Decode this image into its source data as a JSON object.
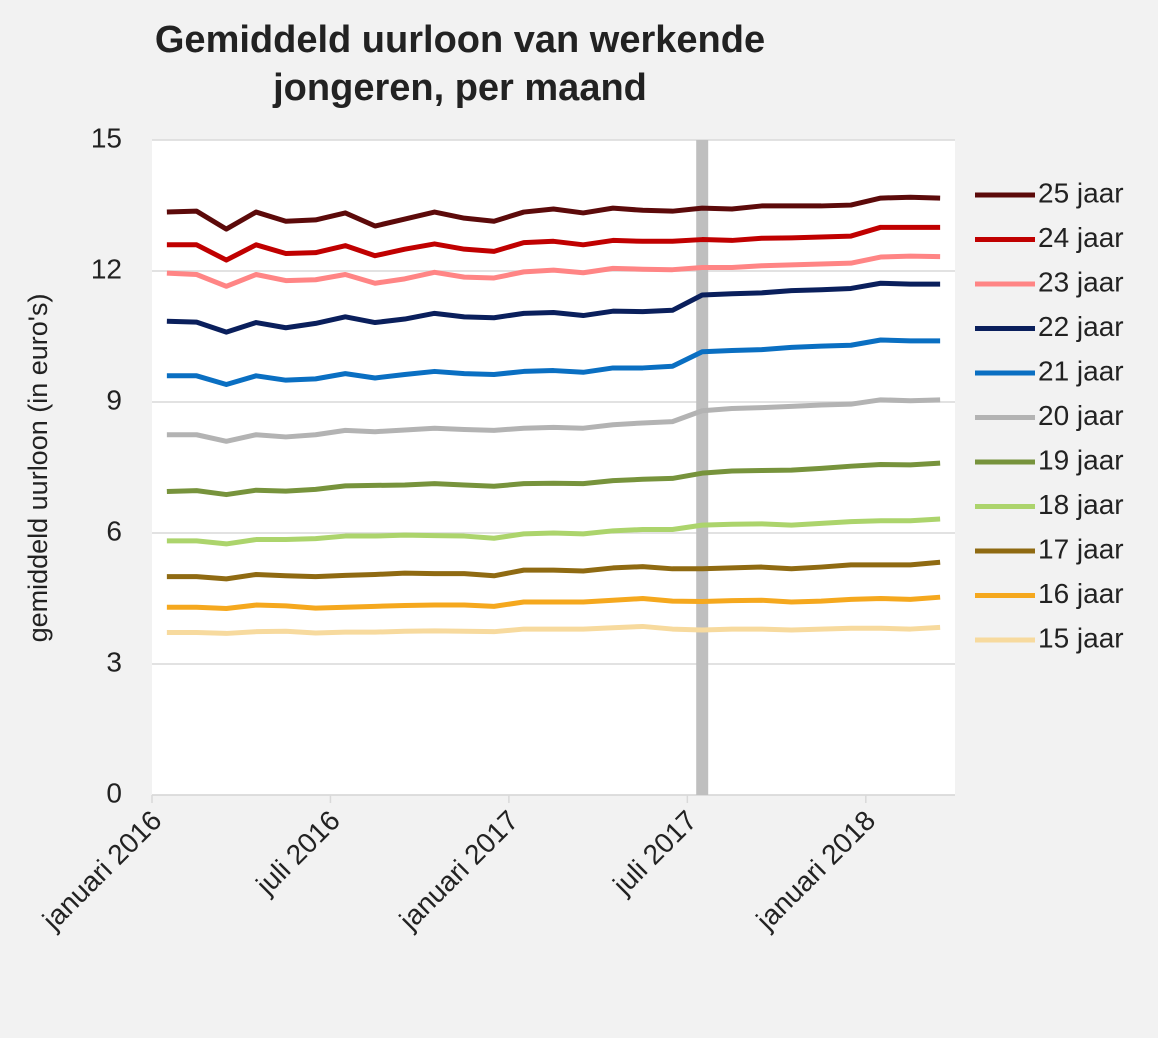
{
  "chart_data": {
    "type": "line",
    "title": [
      "Gemiddeld uurloon van werkende",
      "jongeren, per maand"
    ],
    "y_label": "gemiddeld uurloon (in euro's)",
    "categories": [
      "januari 2016",
      null,
      null,
      null,
      null,
      null,
      "juli 2016",
      null,
      null,
      null,
      null,
      null,
      "januari 2017",
      null,
      null,
      null,
      null,
      null,
      "juli 2017",
      null,
      null,
      null,
      null,
      null,
      "januari 2018",
      null,
      null
    ],
    "ylim": [
      0,
      15
    ],
    "yticks": [
      0,
      3,
      6,
      9,
      12,
      15
    ],
    "grid": true,
    "legend": "right",
    "series": [
      {
        "name": "25 jaar",
        "color": "#5c0a0a",
        "values": [
          13.35,
          13.37,
          12.96,
          13.35,
          13.14,
          13.17,
          13.33,
          13.03,
          13.19,
          13.35,
          13.21,
          13.14,
          13.35,
          13.42,
          13.33,
          13.44,
          13.39,
          13.37,
          13.44,
          13.42,
          13.49,
          13.49,
          13.49,
          13.51,
          13.67,
          13.69,
          13.67
        ]
      },
      {
        "name": "24 jaar",
        "color": "#c00000",
        "values": [
          12.6,
          12.6,
          12.25,
          12.6,
          12.4,
          12.42,
          12.58,
          12.35,
          12.5,
          12.62,
          12.5,
          12.45,
          12.65,
          12.68,
          12.6,
          12.7,
          12.68,
          12.68,
          12.72,
          12.7,
          12.75,
          12.76,
          12.78,
          12.8,
          13.0,
          13.0,
          13.0
        ]
      },
      {
        "name": "23 jaar",
        "color": "#ff8585",
        "values": [
          11.95,
          11.92,
          11.65,
          11.92,
          11.78,
          11.8,
          11.92,
          11.72,
          11.82,
          11.97,
          11.86,
          11.84,
          11.98,
          12.02,
          11.96,
          12.06,
          12.04,
          12.03,
          12.08,
          12.08,
          12.12,
          12.14,
          12.16,
          12.18,
          12.32,
          12.34,
          12.33
        ]
      },
      {
        "name": "22 jaar",
        "color": "#0a1f5c",
        "values": [
          10.85,
          10.83,
          10.6,
          10.82,
          10.7,
          10.8,
          10.95,
          10.82,
          10.9,
          11.03,
          10.95,
          10.93,
          11.03,
          11.05,
          10.98,
          11.08,
          11.07,
          11.1,
          11.45,
          11.48,
          11.5,
          11.55,
          11.57,
          11.6,
          11.72,
          11.7,
          11.7
        ]
      },
      {
        "name": "21 jaar",
        "color": "#0a6fc2",
        "values": [
          9.6,
          9.6,
          9.4,
          9.6,
          9.5,
          9.53,
          9.65,
          9.55,
          9.63,
          9.7,
          9.65,
          9.63,
          9.7,
          9.72,
          9.68,
          9.78,
          9.78,
          9.82,
          10.15,
          10.18,
          10.2,
          10.25,
          10.28,
          10.3,
          10.42,
          10.4,
          10.4
        ]
      },
      {
        "name": "20 jaar",
        "color": "#b3b3b3",
        "values": [
          8.25,
          8.25,
          8.1,
          8.25,
          8.2,
          8.25,
          8.35,
          8.32,
          8.36,
          8.4,
          8.37,
          8.35,
          8.4,
          8.42,
          8.4,
          8.48,
          8.52,
          8.55,
          8.8,
          8.85,
          8.87,
          8.9,
          8.93,
          8.95,
          9.05,
          9.03,
          9.05
        ]
      },
      {
        "name": "19 jaar",
        "color": "#77933c",
        "values": [
          6.95,
          6.97,
          6.88,
          6.98,
          6.96,
          7.0,
          7.08,
          7.09,
          7.1,
          7.13,
          7.1,
          7.07,
          7.13,
          7.14,
          7.13,
          7.2,
          7.23,
          7.25,
          7.37,
          7.42,
          7.43,
          7.44,
          7.48,
          7.53,
          7.57,
          7.56,
          7.6
        ]
      },
      {
        "name": "18 jaar",
        "color": "#acd46c",
        "values": [
          5.82,
          5.82,
          5.75,
          5.85,
          5.85,
          5.87,
          5.93,
          5.93,
          5.95,
          5.94,
          5.93,
          5.88,
          5.98,
          6.0,
          5.98,
          6.05,
          6.08,
          6.08,
          6.18,
          6.2,
          6.21,
          6.18,
          6.22,
          6.26,
          6.28,
          6.28,
          6.32
        ]
      },
      {
        "name": "17 jaar",
        "color": "#8f6a12",
        "values": [
          5.0,
          5.0,
          4.95,
          5.05,
          5.02,
          5.0,
          5.03,
          5.05,
          5.08,
          5.07,
          5.07,
          5.02,
          5.15,
          5.15,
          5.13,
          5.2,
          5.23,
          5.18,
          5.18,
          5.2,
          5.22,
          5.18,
          5.22,
          5.27,
          5.27,
          5.27,
          5.33
        ]
      },
      {
        "name": "16 jaar",
        "color": "#f5a81e",
        "values": [
          4.3,
          4.3,
          4.27,
          4.35,
          4.33,
          4.28,
          4.3,
          4.32,
          4.34,
          4.35,
          4.35,
          4.32,
          4.42,
          4.42,
          4.42,
          4.46,
          4.5,
          4.44,
          4.43,
          4.45,
          4.46,
          4.42,
          4.44,
          4.48,
          4.5,
          4.48,
          4.53
        ]
      },
      {
        "name": "15 jaar",
        "color": "#f7da9e",
        "values": [
          3.72,
          3.72,
          3.7,
          3.74,
          3.75,
          3.71,
          3.73,
          3.73,
          3.75,
          3.76,
          3.75,
          3.74,
          3.8,
          3.8,
          3.8,
          3.83,
          3.86,
          3.8,
          3.78,
          3.8,
          3.8,
          3.78,
          3.8,
          3.82,
          3.82,
          3.8,
          3.84
        ]
      }
    ]
  }
}
